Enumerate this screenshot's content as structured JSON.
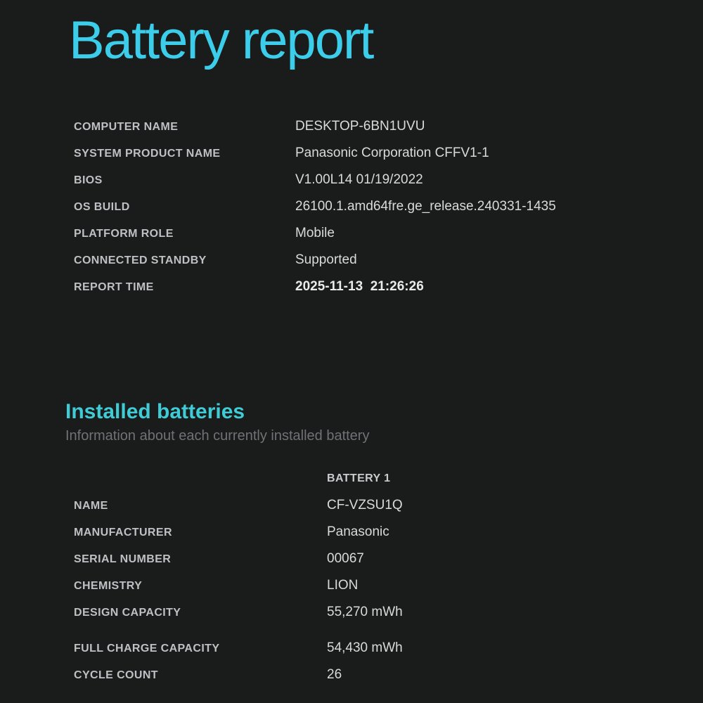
{
  "colors": {
    "background": "#1a1b1b",
    "title_accent": "#3bcde9",
    "section_accent": "#3fccd6",
    "label_text": "#bdc1c3",
    "value_text": "#d9dadb",
    "muted_text": "#6f7376"
  },
  "header": {
    "title": "Battery report"
  },
  "system_info": {
    "rows": [
      {
        "label": "COMPUTER NAME",
        "value": "DESKTOP-6BN1UVU"
      },
      {
        "label": "SYSTEM PRODUCT NAME",
        "value": "Panasonic Corporation CFFV1-1"
      },
      {
        "label": "BIOS",
        "value": "V1.00L14 01/19/2022"
      },
      {
        "label": "OS BUILD",
        "value": "26100.1.amd64fre.ge_release.240331-1435"
      },
      {
        "label": "PLATFORM ROLE",
        "value": "Mobile"
      },
      {
        "label": "CONNECTED STANDBY",
        "value": "Supported"
      },
      {
        "label": "REPORT TIME",
        "value": "2025-11-13  21:26:26"
      }
    ]
  },
  "installed_batteries": {
    "heading": "Installed batteries",
    "subtitle": "Information about each currently installed battery",
    "column_header": "BATTERY 1",
    "rows": [
      {
        "label": "NAME",
        "value": "CF-VZSU1Q"
      },
      {
        "label": "MANUFACTURER",
        "value": "Panasonic"
      },
      {
        "label": "SERIAL NUMBER",
        "value": "00067"
      },
      {
        "label": "CHEMISTRY",
        "value": "LION"
      },
      {
        "label": "DESIGN CAPACITY",
        "value": "55,270 mWh"
      },
      {
        "label": "FULL CHARGE CAPACITY",
        "value": "54,430 mWh"
      },
      {
        "label": "CYCLE COUNT",
        "value": "26"
      }
    ]
  }
}
